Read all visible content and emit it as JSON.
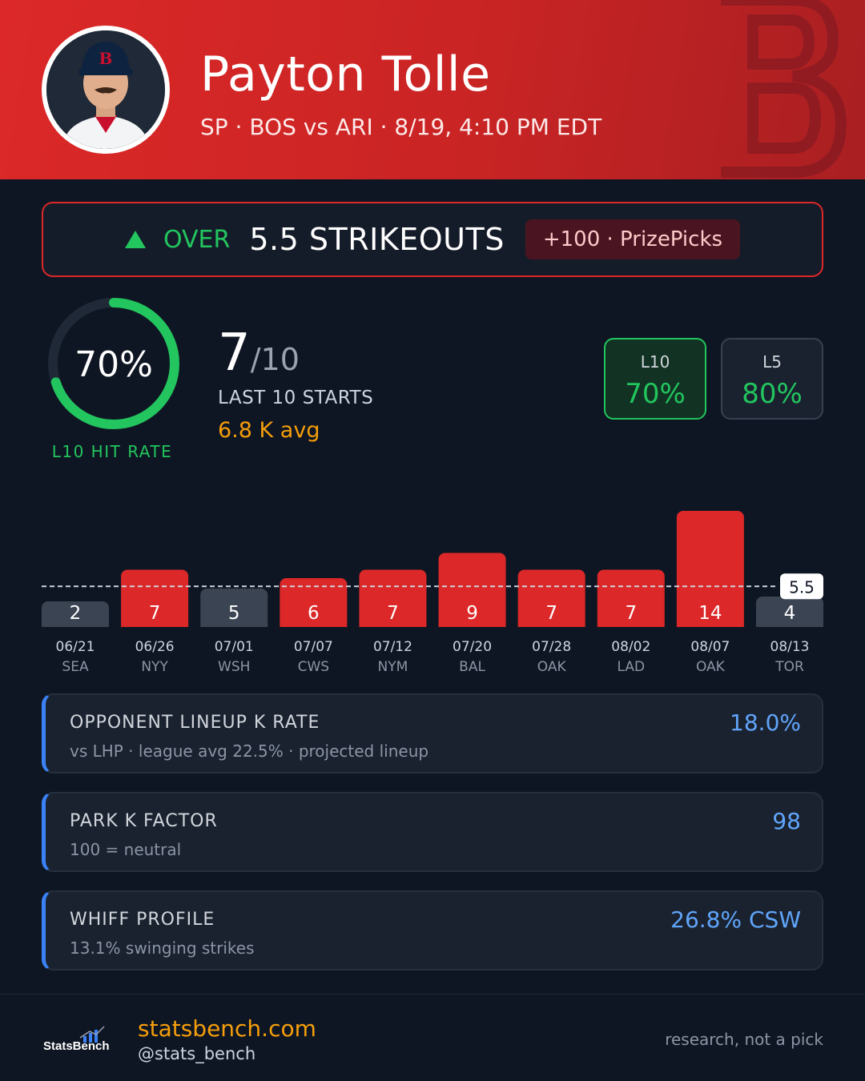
{
  "header": {
    "player_name": "Payton Tolle",
    "meta": "SP · BOS vs ARI · 8/19, 4:10 PM EDT",
    "team_logo_icon": "team-b-logo-icon",
    "avatar_icon": "player-headshot"
  },
  "prop": {
    "direction_icon": "up-triangle-icon",
    "direction": "OVER",
    "line": "5.5 STRIKEOUTS",
    "odds": "+100 · PrizePicks"
  },
  "hit_rate": {
    "percent_text": "70%",
    "percent_value": 0.7,
    "label": "L10 HIT RATE",
    "hits": "7",
    "denominator": "/10",
    "window_label": "LAST 10 STARTS",
    "k_avg": "6.8 K avg"
  },
  "splits": [
    {
      "label": "L10",
      "value": "70%"
    },
    {
      "label": "L5",
      "value": "80%"
    }
  ],
  "chart_data": {
    "type": "bar",
    "categories": [
      "06/21",
      "06/26",
      "07/01",
      "07/07",
      "07/12",
      "07/20",
      "07/28",
      "08/02",
      "08/07",
      "08/13"
    ],
    "opponents": [
      "SEA",
      "NYY",
      "WSH",
      "CWS",
      "NYM",
      "BAL",
      "OAK",
      "LAD",
      "OAK",
      "TOR"
    ],
    "values": [
      2,
      7,
      5,
      6,
      7,
      9,
      7,
      7,
      14,
      4
    ],
    "threshold": 5.5,
    "threshold_label": "5.5",
    "colors": {
      "over": "#dc2828",
      "under": "#3b4452"
    }
  },
  "info_cards": [
    {
      "title": "OPPONENT LINEUP K RATE",
      "sub": "vs LHP · league avg 22.5% · projected lineup",
      "value": "18.0%"
    },
    {
      "title": "PARK K FACTOR",
      "sub": "100 = neutral",
      "value": "98"
    },
    {
      "title": "WHIFF PROFILE",
      "sub": "13.1% swinging strikes",
      "value": "26.8% CSW"
    }
  ],
  "footer": {
    "logo_text": "StatsBench",
    "site": "statsbench.com",
    "handle": "@stats_bench",
    "disclaimer": "research, not a pick"
  },
  "colors": {
    "accent_red": "#dc2828",
    "green": "#22c55e",
    "orange": "#f59e0b",
    "blue": "#60a5fa",
    "background": "#0f1623"
  }
}
